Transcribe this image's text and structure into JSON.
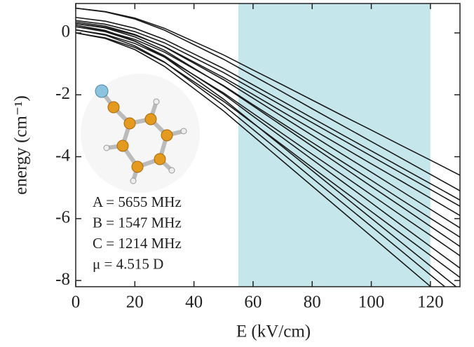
{
  "chart_data": {
    "type": "line",
    "xlabel": "E (kV/cm)",
    "ylabel": "energy (cm⁻¹)",
    "annotations": [
      "A = 5655 MHz",
      "B = 1547 MHz",
      "C = 1214 MHz",
      "μ = 4.515 D"
    ],
    "shaded_region": [
      55,
      120
    ],
    "shaded_color": "#c5e6ea",
    "color": "#1a1a1a",
    "xlim": [
      0,
      130
    ],
    "ylim": [
      -8.2,
      0.95
    ],
    "xticks": [
      0,
      20,
      40,
      60,
      80,
      100,
      120
    ],
    "yticks": [
      0,
      -2,
      -4,
      -6,
      -8
    ],
    "x": [
      0,
      10,
      20,
      30,
      40,
      50,
      60,
      70,
      80,
      90,
      100,
      110,
      120,
      130
    ],
    "series": [
      {
        "values": [
          0.8,
          0.69,
          0.48,
          0.15,
          -0.28,
          -0.71,
          -1.2,
          -1.68,
          -2.17,
          -2.66,
          -3.14,
          -3.63,
          -4.11,
          -4.6
        ]
      },
      {
        "values": [
          0.8,
          0.68,
          0.45,
          0.09,
          -0.38,
          -0.85,
          -1.38,
          -1.91,
          -2.45,
          -2.98,
          -3.51,
          -4.04,
          -4.57,
          -5.1
        ]
      },
      {
        "values": [
          0.5,
          0.38,
          0.15,
          -0.21,
          -0.68,
          -1.15,
          -1.68,
          -2.21,
          -2.75,
          -3.28,
          -3.81,
          -4.34,
          -4.87,
          -5.4
        ]
      },
      {
        "values": [
          0.4,
          0.28,
          0.04,
          -0.32,
          -0.8,
          -1.28,
          -1.82,
          -2.36,
          -2.9,
          -3.44,
          -3.98,
          -4.52,
          -5.06,
          -5.6
        ]
      },
      {
        "values": [
          0.3,
          0.18,
          -0.07,
          -0.44,
          -0.94,
          -1.44,
          -1.99,
          -2.55,
          -3.11,
          -3.67,
          -4.23,
          -4.78,
          -5.34,
          -5.9
        ]
      },
      {
        "values": [
          0.35,
          0.22,
          -0.05,
          -0.45,
          -0.98,
          -1.51,
          -2.11,
          -2.71,
          -3.31,
          -3.91,
          -4.5,
          -5.1,
          -5.7,
          -6.3
        ]
      },
      {
        "values": [
          0.2,
          0.06,
          -0.21,
          -0.62,
          -1.16,
          -1.7,
          -2.32,
          -2.93,
          -3.54,
          -4.15,
          -4.76,
          -5.38,
          -5.99,
          -6.6
        ]
      },
      {
        "values": [
          0.3,
          0.16,
          -0.13,
          -0.56,
          -1.14,
          -1.72,
          -2.36,
          -3.01,
          -3.66,
          -4.31,
          -4.96,
          -5.6,
          -6.25,
          -6.9
        ]
      },
      {
        "values": [
          0.1,
          -0.05,
          -0.34,
          -0.78,
          -1.36,
          -1.94,
          -2.6,
          -3.26,
          -3.92,
          -4.57,
          -5.23,
          -5.89,
          -6.54,
          -7.2
        ]
      },
      {
        "values": [
          0.2,
          0.04,
          -0.27,
          -0.74,
          -1.36,
          -1.98,
          -2.69,
          -3.39,
          -4.09,
          -4.79,
          -5.49,
          -6.2,
          -6.9,
          -7.6
        ]
      },
      {
        "values": [
          0,
          -0.16,
          -0.47,
          -0.95,
          -1.58,
          -2.21,
          -2.92,
          -3.63,
          -4.35,
          -5.06,
          -5.77,
          -6.48,
          -7.19,
          -7.9
        ]
      },
      {
        "values": [
          0.25,
          0.08,
          -0.26,
          -0.78,
          -1.46,
          -2.14,
          -2.91,
          -3.68,
          -4.45,
          -5.22,
          -5.99,
          -6.76,
          -7.53,
          -8.3
        ]
      },
      {
        "values": [
          0.1,
          -0.07,
          -0.42,
          -0.94,
          -1.64,
          -2.34,
          -3.12,
          -3.9,
          -4.69,
          -5.47,
          -6.25,
          -7.03,
          -7.82,
          -8.6
        ]
      },
      {
        "values": [
          0,
          -0.18,
          -0.54,
          -1.08,
          -1.8,
          -2.52,
          -3.33,
          -4.14,
          -4.95,
          -5.76,
          -6.57,
          -7.38,
          -8.19,
          -9
        ]
      }
    ]
  }
}
